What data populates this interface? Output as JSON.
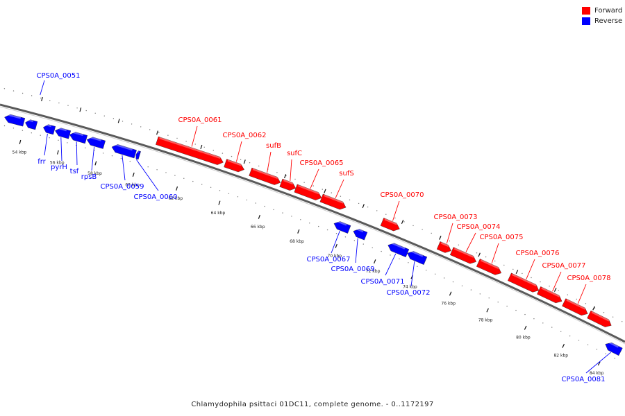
{
  "legend": [
    {
      "label": "Forward",
      "color": "#ff0000"
    },
    {
      "label": "Reverse",
      "color": "#0000ff"
    }
  ],
  "caption": "Chlamydophila psittaci 01DC11, complete genome. - 0..1172197",
  "genes": [
    {
      "name": "",
      "strand": "reverse"
    },
    {
      "name": "",
      "strand": "reverse"
    },
    {
      "name": "frr",
      "strand": "reverse"
    },
    {
      "name": "pyrH",
      "strand": "reverse"
    },
    {
      "name": "tsf",
      "strand": "reverse"
    },
    {
      "name": "rpsB",
      "strand": "reverse"
    },
    {
      "name": "CPS0A_0059",
      "strand": "reverse"
    },
    {
      "name": "CPS0A_0060",
      "strand": "reverse"
    },
    {
      "name": "CPS0A_0061",
      "strand": "forward"
    },
    {
      "name": "CPS0A_0062",
      "strand": "forward"
    },
    {
      "name": "sufB",
      "strand": "forward"
    },
    {
      "name": "sufC",
      "strand": "forward"
    },
    {
      "name": "CPS0A_0065",
      "strand": "forward"
    },
    {
      "name": "sufS",
      "strand": "forward"
    },
    {
      "name": "CPS0A_0067",
      "strand": "reverse"
    },
    {
      "name": "CPS0A_0069",
      "strand": "reverse"
    },
    {
      "name": "CPS0A_0070",
      "strand": "forward"
    },
    {
      "name": "CPS0A_0071",
      "strand": "reverse"
    },
    {
      "name": "CPS0A_0072",
      "strand": "reverse"
    },
    {
      "name": "CPS0A_0073",
      "strand": "forward"
    },
    {
      "name": "CPS0A_0074",
      "strand": "forward"
    },
    {
      "name": "CPS0A_0075",
      "strand": "forward"
    },
    {
      "name": "CPS0A_0076",
      "strand": "forward"
    },
    {
      "name": "CPS0A_0077",
      "strand": "forward"
    },
    {
      "name": "CPS0A_0078",
      "strand": "forward"
    },
    {
      "name": "CPS0A_0081",
      "strand": "reverse"
    }
  ],
  "tick_labels": [
    "54 kbp",
    "56 kbp",
    "58 kbp",
    "60 kbp",
    "62 kbp",
    "64 kbp",
    "66 kbp",
    "68 kbp",
    "70 kbp",
    "72 kbp",
    "74 kbp",
    "76 kbp",
    "78 kbp",
    "80 kbp",
    "82 kbp",
    "84 kbp"
  ],
  "outer_label": "CPS0A_0051"
}
